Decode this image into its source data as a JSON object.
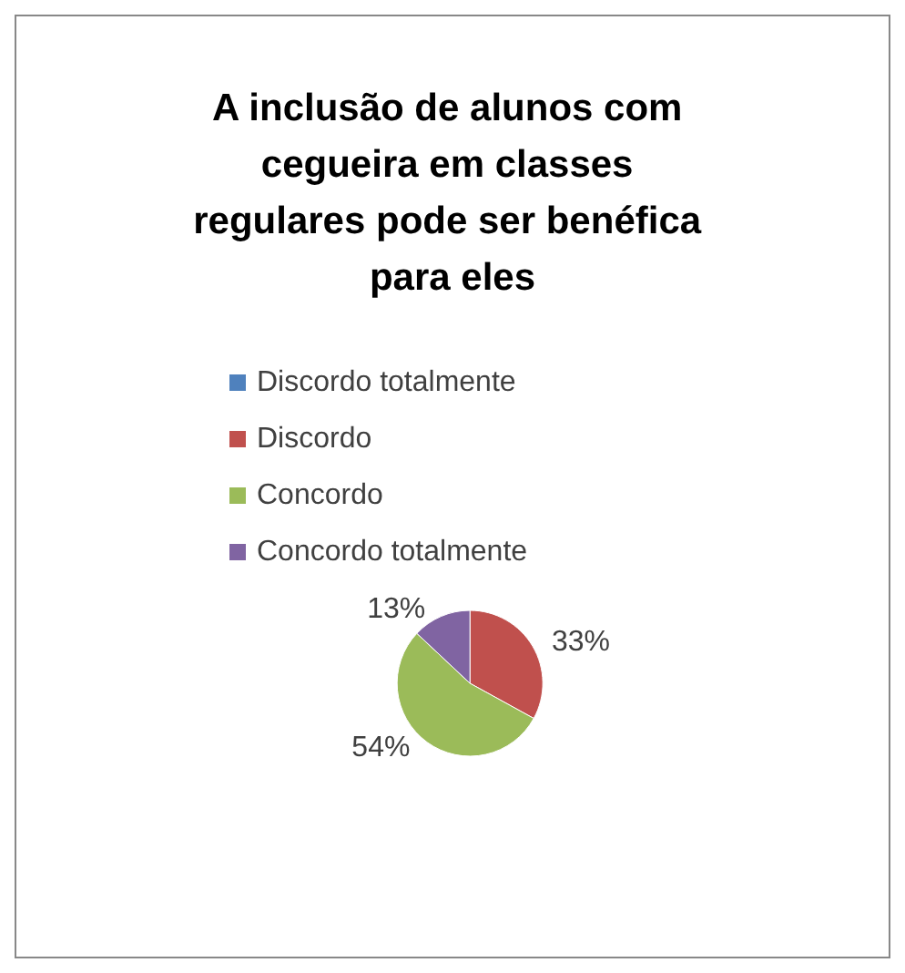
{
  "chart_data": {
    "type": "pie",
    "title": "A inclusão de alunos com cegueira em classes regulares pode ser benéfica para eles",
    "categories": [
      "Discordo totalmente",
      "Discordo",
      "Concordo",
      "Concordo totalmente"
    ],
    "values": [
      0,
      33,
      54,
      13
    ],
    "colors": [
      "#4f81bd",
      "#c0504d",
      "#9bbb59",
      "#8064a2"
    ],
    "value_labels": [
      null,
      "33%",
      "54%",
      "13%"
    ],
    "legend": "top"
  }
}
